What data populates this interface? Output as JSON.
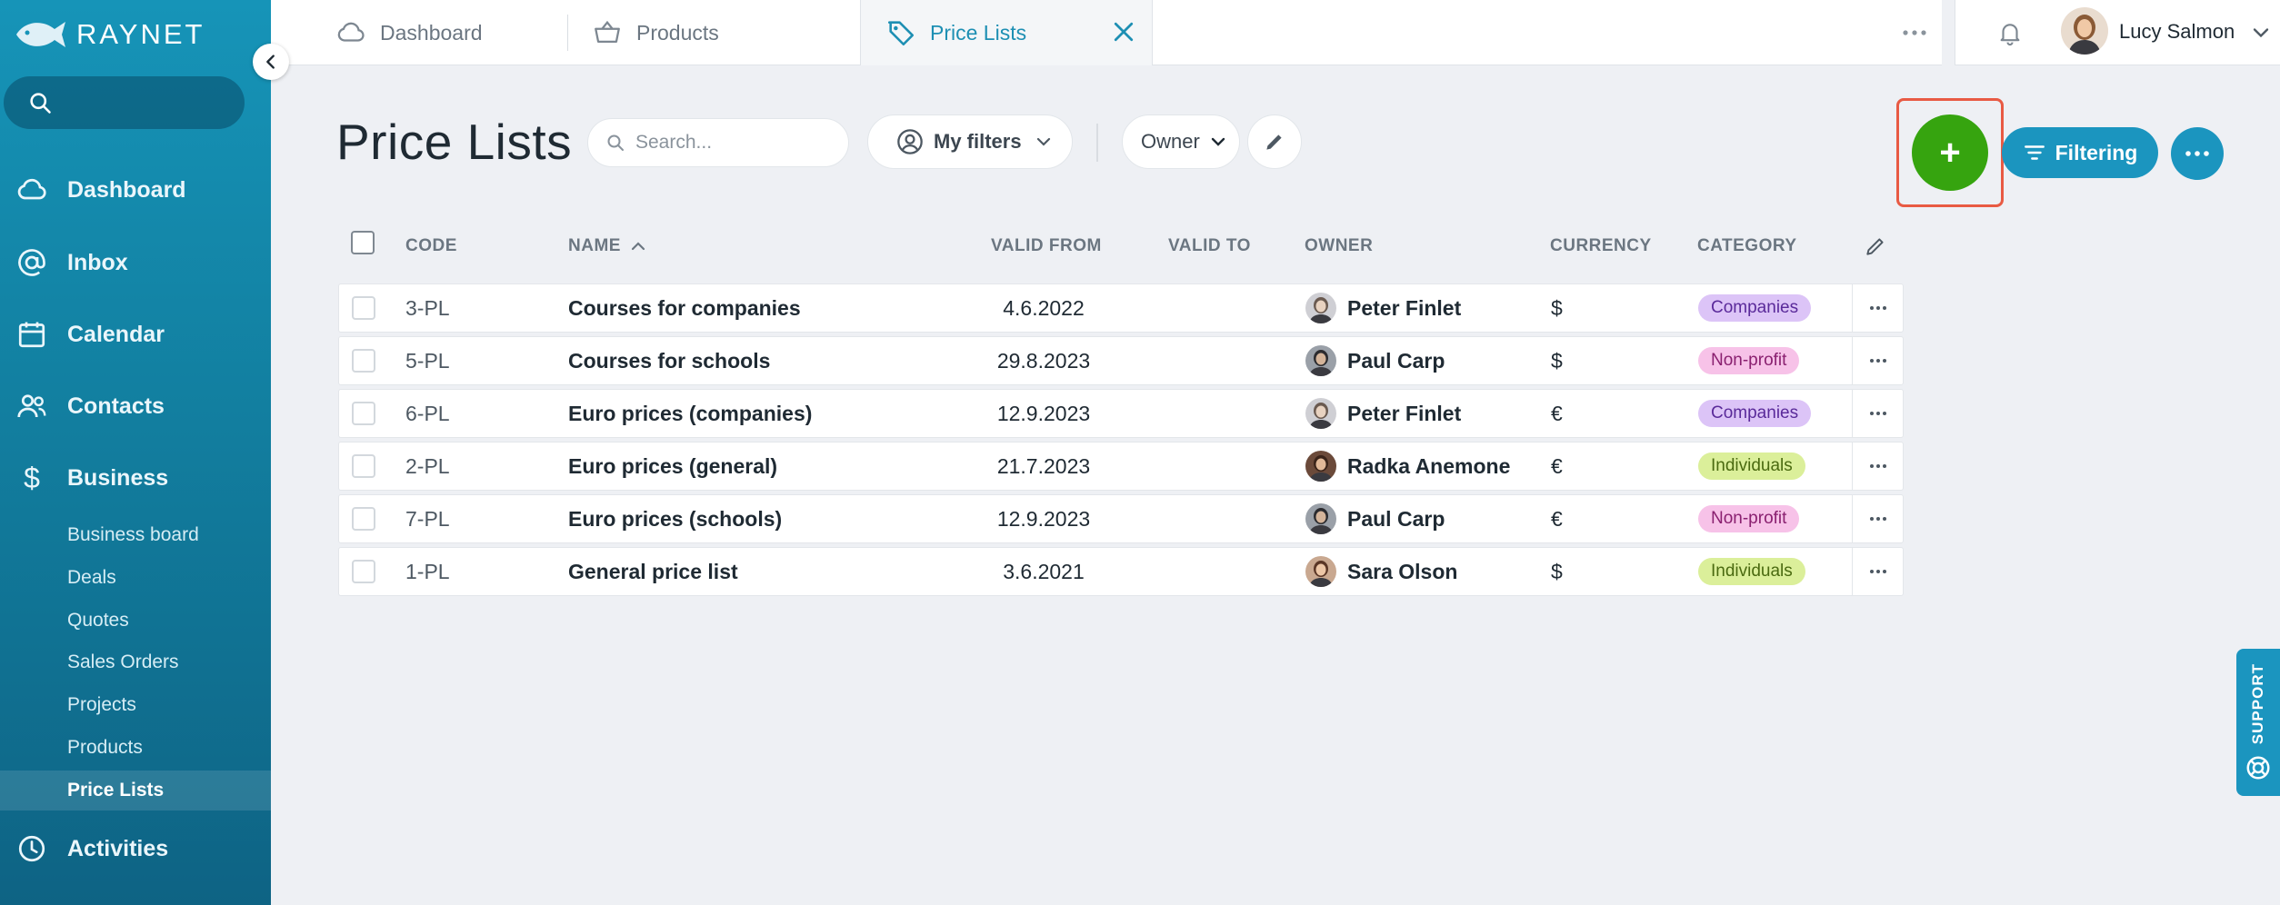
{
  "app": {
    "brand": "RAYNET"
  },
  "colors": {
    "sidebar": "#1694b8",
    "accent": "#1b95bf",
    "add_button": "#36a40f",
    "highlight": "#e85a43"
  },
  "sidebar": {
    "search_placeholder": "",
    "nav": [
      {
        "label": "Dashboard",
        "icon": "cloud-icon"
      },
      {
        "label": "Inbox",
        "icon": "at-icon"
      },
      {
        "label": "Calendar",
        "icon": "calendar-icon"
      },
      {
        "label": "Contacts",
        "icon": "contacts-icon"
      },
      {
        "label": "Business",
        "icon": "dollar-icon"
      },
      {
        "label": "Activities",
        "icon": "clock-icon"
      }
    ],
    "business_sub": [
      "Business board",
      "Deals",
      "Quotes",
      "Sales Orders",
      "Projects",
      "Products",
      "Price Lists"
    ],
    "active_sub": "Price Lists"
  },
  "tabs": [
    {
      "label": "Dashboard",
      "icon": "cloud-icon"
    },
    {
      "label": "Products",
      "icon": "basket-icon"
    },
    {
      "label": "Price Lists",
      "icon": "tag-icon",
      "active": true
    }
  ],
  "user": {
    "name": "Lucy Salmon"
  },
  "page": {
    "title": "Price Lists",
    "search_placeholder": "Search...",
    "my_filters_label": "My filters",
    "owner_label": "Owner",
    "filtering_label": "Filtering",
    "add_label": "+"
  },
  "table": {
    "columns": {
      "code": "CODE",
      "name": "NAME",
      "valid_from": "VALID FROM",
      "valid_to": "VALID TO",
      "owner": "OWNER",
      "currency": "CURRENCY",
      "category": "CATEGORY"
    },
    "sort_indicator": "^",
    "rows": [
      {
        "code": "3-PL",
        "name": "Courses for companies",
        "valid_from": "4.6.2022",
        "valid_to": "",
        "owner": "Peter Finlet",
        "currency": "$",
        "category": "Companies"
      },
      {
        "code": "5-PL",
        "name": "Courses for schools",
        "valid_from": "29.8.2023",
        "valid_to": "",
        "owner": "Paul Carp",
        "currency": "$",
        "category": "Non-profit"
      },
      {
        "code": "6-PL",
        "name": "Euro prices (companies)",
        "valid_from": "12.9.2023",
        "valid_to": "",
        "owner": "Peter Finlet",
        "currency": "€",
        "category": "Companies"
      },
      {
        "code": "2-PL",
        "name": "Euro prices (general)",
        "valid_from": "21.7.2023",
        "valid_to": "",
        "owner": "Radka Anemone",
        "currency": "€",
        "category": "Individuals"
      },
      {
        "code": "7-PL",
        "name": "Euro prices (schools)",
        "valid_from": "12.9.2023",
        "valid_to": "",
        "owner": "Paul Carp",
        "currency": "€",
        "category": "Non-profit"
      },
      {
        "code": "1-PL",
        "name": "General price list",
        "valid_from": "3.6.2021",
        "valid_to": "",
        "owner": "Sara Olson",
        "currency": "$",
        "category": "Individuals"
      }
    ]
  },
  "category_colors": {
    "Companies": {
      "bg": "#dcc4f7",
      "fg": "#5a2a9a"
    },
    "Non-profit": {
      "bg": "#f7c2e8",
      "fg": "#8a2070"
    },
    "Individuals": {
      "bg": "#dbef9a",
      "fg": "#4a6a10"
    }
  },
  "support": {
    "label": "SUPPORT"
  }
}
